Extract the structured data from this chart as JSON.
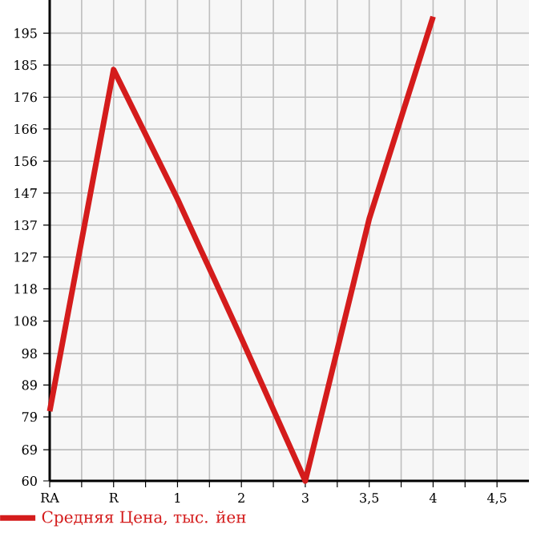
{
  "chart_data": {
    "type": "line",
    "categories": [
      "RA",
      "R",
      "1",
      "2",
      "3",
      "3,5",
      "4",
      "4,5"
    ],
    "series": [
      {
        "name": "Средняя Цена, тыс. йен",
        "color": "#d41c1c",
        "values": [
          81,
          184,
          145,
          103,
          60,
          139,
          200,
          null
        ]
      }
    ],
    "ylim": [
      60,
      205
    ],
    "yticks": [
      60,
      {
        "value": 69.4,
        "label": "69"
      },
      {
        "value": 79.3,
        "label": "79"
      },
      {
        "value": 88.9,
        "label": "89"
      },
      {
        "value": 98.4,
        "label": "98"
      },
      {
        "value": 108.2,
        "label": "108"
      },
      {
        "value": 117.9,
        "label": "118"
      },
      {
        "value": 127.5,
        "label": "127"
      },
      {
        "value": 137.1,
        "label": "137"
      },
      {
        "value": 146.8,
        "label": "147"
      },
      {
        "value": 156.4,
        "label": "156"
      },
      {
        "value": 166.1,
        "label": "166"
      },
      {
        "value": 175.7,
        "label": "176"
      },
      {
        "value": 185.4,
        "label": "185"
      },
      {
        "value": 195,
        "label": "195"
      }
    ],
    "grid": true,
    "legend": "bottom",
    "marker": "none",
    "line_style": "solid"
  }
}
